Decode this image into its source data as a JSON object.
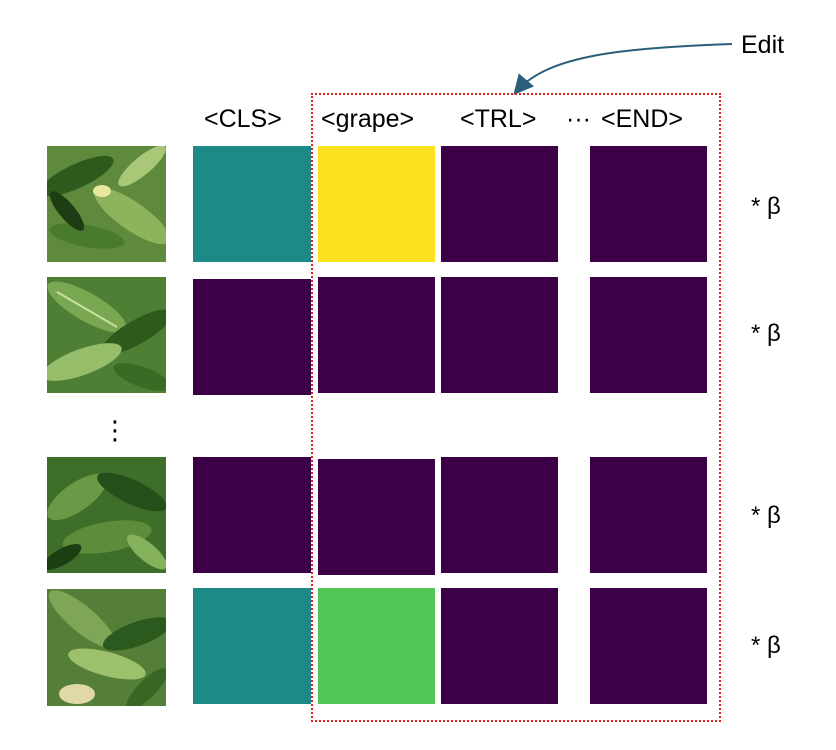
{
  "edit_label": "Edit",
  "token_headers": [
    "<CLS>",
    "<grape>",
    "<TRL>",
    "<END>"
  ],
  "ellipsis_h": "···",
  "ellipsis_v": "⋮",
  "beta_label": "* β",
  "rows": [
    {
      "name": "row-1",
      "cells": [
        "#1e8a87",
        "#fde21f",
        "#3c0047",
        "#3c0047"
      ]
    },
    {
      "name": "row-2",
      "cells": [
        "#3c0047",
        "#3c0047",
        "#3c0047",
        "#3c0047"
      ]
    },
    {
      "name": "row-3",
      "cells": [
        "#3c0047",
        "#3c0047",
        "#3c0047",
        "#3c0047"
      ]
    },
    {
      "name": "row-4",
      "cells": [
        "#1e8a87",
        "#52c557",
        "#3c0047",
        "#3c0047"
      ]
    }
  ],
  "colors": {
    "teal": "#1e8a87",
    "yellow": "#fde21f",
    "dark_purple": "#3c0047",
    "green": "#52c557",
    "edit_box_red": "#e01f1f",
    "arrow": "#2b5f7c"
  }
}
